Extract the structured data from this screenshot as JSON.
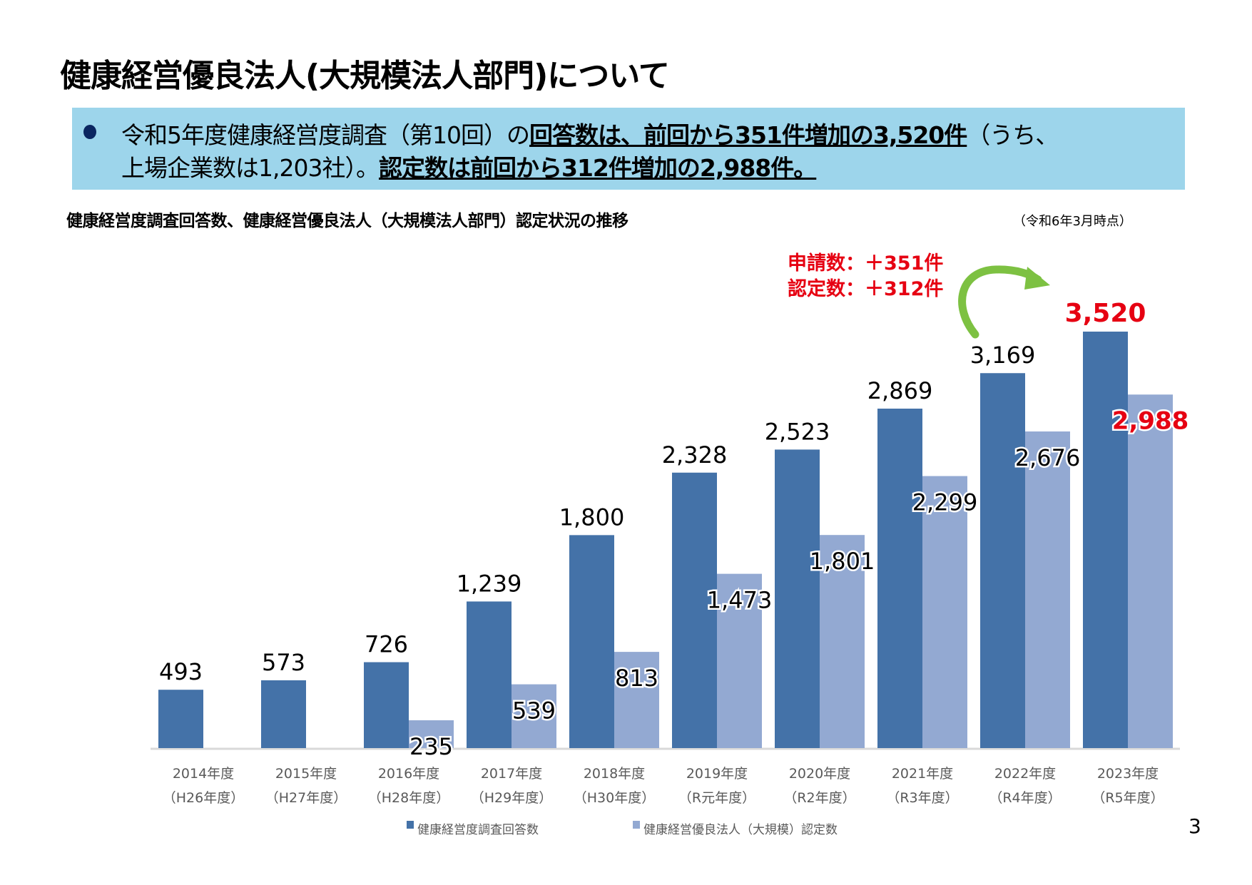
{
  "title": "健康経営優良法人(大規模法人部門)について",
  "summary": {
    "line1_plain": "令和5年度健康経営度調査（第10回）の",
    "line1_bold": "回答数は、前回から351件増加の3,520件",
    "line1_tail": "（うち、",
    "line2_plain": "上場企業数は1,203社）。",
    "line2_bold": "認定数は前回から312件増加の2,988件。"
  },
  "subtitle": "健康経営度調査回答数、健康経営優良法人（大規模法人部門）認定状況の推移",
  "as_of": "（令和6年3月時点）",
  "annotation": {
    "line1": "申請数：＋351件",
    "line2": "認定数：＋312件",
    "arrow_color": "#7dc142",
    "icon": "curved-arrow-icon"
  },
  "page_number": "3",
  "colors": {
    "box": "#9dd5eb",
    "series1": "#4472a8",
    "series2": "#93a9d2",
    "highlight": "#e60012"
  },
  "chart_data": {
    "type": "bar",
    "categories": [
      "2014年度",
      "2015年度",
      "2016年度",
      "2017年度",
      "2018年度",
      "2019年度",
      "2020年度",
      "2021年度",
      "2022年度",
      "2023年度"
    ],
    "categories_sub": [
      "（H26年度）",
      "（H27年度）",
      "（H28年度）",
      "（H29年度）",
      "（H30年度）",
      "（R元年度）",
      "（R2年度）",
      "（R3年度）",
      "（R4年度）",
      "（R5年度）"
    ],
    "series": [
      {
        "name": "健康経営度調査回答数",
        "values": [
          493,
          573,
          726,
          1239,
          1800,
          2328,
          2523,
          2869,
          3169,
          3520
        ],
        "labels": [
          "493",
          "573",
          "726",
          "1,239",
          "1,800",
          "2,328",
          "2,523",
          "2,869",
          "3,169",
          "3,520"
        ]
      },
      {
        "name": "健康経営優良法人（大規模）認定数",
        "values": [
          null,
          null,
          235,
          539,
          813,
          1473,
          1801,
          2299,
          2676,
          2988
        ],
        "labels": [
          "",
          "",
          "235",
          "539",
          "813",
          "1,473",
          "1,801",
          "2,299",
          "2,676",
          "2,988"
        ]
      }
    ],
    "ylim": [
      0,
      3520
    ],
    "grid": false,
    "legend": "bottom",
    "highlight_last": true
  }
}
